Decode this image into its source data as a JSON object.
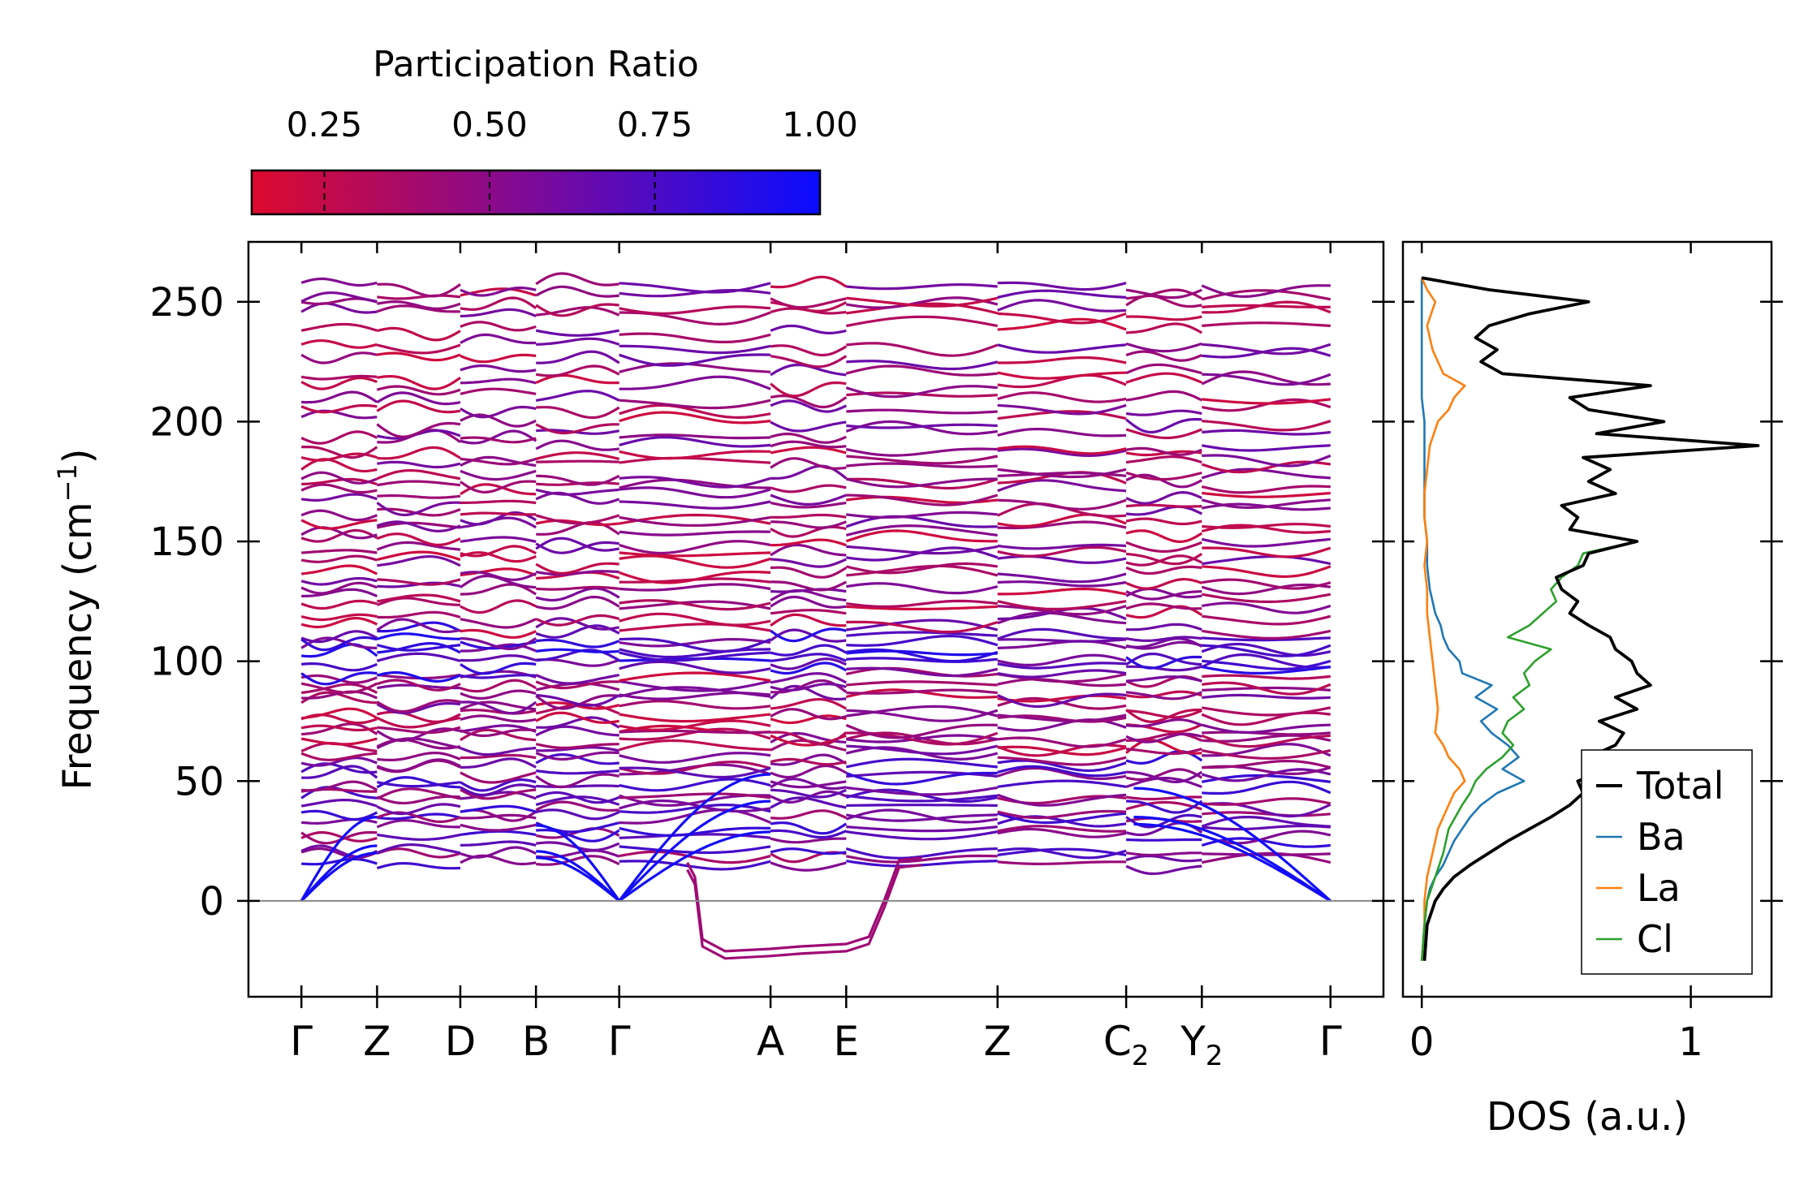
{
  "chart_data": [
    {
      "type": "line",
      "title": "",
      "ylabel": "Frequency (cm⁻¹)",
      "ylabel_main": "Frequency (cm",
      "ylabel_sup": "−1",
      "ylabel_close": ")",
      "ylim": [
        -40,
        275
      ],
      "yticks": [
        0,
        50,
        100,
        150,
        200,
        250
      ],
      "xticks": [
        {
          "label": "Γ",
          "pos": 0.0
        },
        {
          "label": "Z",
          "pos": 0.5
        },
        {
          "label": "D",
          "pos": 1.05
        },
        {
          "label": "B",
          "pos": 1.55
        },
        {
          "label": "Γ",
          "pos": 2.1
        },
        {
          "label": "A",
          "pos": 3.1
        },
        {
          "label": "E",
          "pos": 3.6
        },
        {
          "label": "Z",
          "pos": 4.6
        },
        {
          "label": "C",
          "sub": "2",
          "pos": 5.45
        },
        {
          "label": "Y",
          "sub": "2",
          "pos": 5.95
        },
        {
          "label": "Γ",
          "pos": 6.8
        }
      ],
      "xlim": [
        -0.35,
        7.15
      ],
      "colorbar": {
        "label": "Participation Ratio",
        "range": [
          0.14,
          1.0
        ],
        "ticks": [
          "0.25",
          "0.50",
          "0.75",
          "1.00"
        ],
        "tick_values": [
          0.25,
          0.5,
          0.75,
          1.0
        ],
        "color_low": "#dd0a2e",
        "color_mid": "#7c0a9a",
        "color_high": "#0a0cff"
      },
      "band_levels": [
        15,
        19,
        22,
        27,
        30,
        33,
        36,
        39,
        42,
        45,
        48,
        51,
        54,
        57,
        60,
        63,
        66,
        69,
        72,
        75,
        78,
        81,
        84,
        87,
        90,
        93,
        96,
        99,
        102,
        105,
        108,
        111,
        114,
        118,
        122,
        126,
        130,
        134,
        138,
        142,
        146,
        150,
        154,
        158,
        162,
        166,
        170,
        174,
        178,
        182,
        186,
        190,
        195,
        200,
        205,
        210,
        215,
        220,
        226,
        232,
        238,
        244,
        248,
        252,
        256
      ],
      "acoustic_branches": [
        {
          "gamma0_to_Z": [
            0,
            20
          ],
          "gamma_to_A": [
            0,
            18
          ]
        },
        {
          "gamma0_to_Z": [
            0,
            23
          ],
          "gamma_to_A": [
            0,
            26
          ]
        },
        {
          "gamma0_to_Z": [
            0,
            35
          ],
          "gamma_to_A": [
            0,
            33
          ]
        }
      ],
      "imaginary_mode": {
        "min_freq": -22,
        "segment": "Γ-A-E",
        "values": [
          16,
          10,
          -16,
          -21,
          -20,
          -19,
          -18,
          -15,
          0,
          17,
          18
        ]
      }
    },
    {
      "type": "line",
      "xlabel": "DOS (a.u.)",
      "xlim": [
        -0.07,
        1.3
      ],
      "xticks": [
        0,
        1
      ],
      "ylim": [
        -40,
        275
      ],
      "legend_position": "lower-right",
      "series": [
        {
          "name": "Total",
          "color": "#000000",
          "y": [
            -25,
            -10,
            0,
            5,
            10,
            15,
            20,
            25,
            30,
            35,
            40,
            45,
            50,
            55,
            60,
            65,
            70,
            75,
            80,
            85,
            90,
            95,
            100,
            105,
            110,
            115,
            120,
            125,
            130,
            135,
            140,
            145,
            150,
            155,
            160,
            165,
            170,
            175,
            180,
            185,
            190,
            195,
            200,
            205,
            210,
            215,
            220,
            225,
            230,
            235,
            240,
            245,
            250,
            255,
            260
          ],
          "values": [
            0.01,
            0.02,
            0.05,
            0.08,
            0.12,
            0.18,
            0.25,
            0.32,
            0.4,
            0.48,
            0.55,
            0.6,
            0.58,
            0.7,
            0.62,
            0.72,
            0.75,
            0.66,
            0.8,
            0.72,
            0.85,
            0.8,
            0.78,
            0.72,
            0.7,
            0.62,
            0.55,
            0.58,
            0.52,
            0.5,
            0.6,
            0.62,
            0.8,
            0.55,
            0.58,
            0.52,
            0.72,
            0.62,
            0.7,
            0.6,
            1.25,
            0.65,
            0.9,
            0.62,
            0.55,
            0.85,
            0.3,
            0.22,
            0.28,
            0.2,
            0.25,
            0.4,
            0.62,
            0.25,
            0.0
          ]
        },
        {
          "name": "Ba",
          "color": "#1f77b4",
          "y": [
            -25,
            -10,
            0,
            5,
            10,
            15,
            20,
            25,
            30,
            35,
            40,
            45,
            50,
            55,
            60,
            65,
            70,
            75,
            80,
            85,
            90,
            95,
            100,
            105,
            110,
            115,
            120,
            125,
            130,
            140,
            150,
            160,
            170,
            180,
            190,
            200,
            210,
            220,
            230,
            240,
            250,
            260
          ],
          "values": [
            0.0,
            0.01,
            0.02,
            0.03,
            0.05,
            0.08,
            0.1,
            0.12,
            0.15,
            0.18,
            0.22,
            0.28,
            0.38,
            0.3,
            0.36,
            0.32,
            0.26,
            0.22,
            0.28,
            0.2,
            0.26,
            0.15,
            0.14,
            0.1,
            0.08,
            0.07,
            0.05,
            0.04,
            0.03,
            0.02,
            0.02,
            0.01,
            0.01,
            0.01,
            0.01,
            0.01,
            0.0,
            0.0,
            0.0,
            0.0,
            0.0,
            0.0
          ]
        },
        {
          "name": "La",
          "color": "#ff7f0e",
          "y": [
            -25,
            -10,
            0,
            10,
            20,
            30,
            40,
            45,
            50,
            55,
            60,
            65,
            70,
            80,
            90,
            100,
            110,
            120,
            130,
            140,
            150,
            160,
            170,
            180,
            190,
            200,
            205,
            210,
            215,
            220,
            230,
            240,
            250,
            255,
            260
          ],
          "values": [
            0.0,
            0.01,
            0.01,
            0.02,
            0.04,
            0.06,
            0.1,
            0.12,
            0.16,
            0.14,
            0.1,
            0.08,
            0.05,
            0.06,
            0.05,
            0.04,
            0.03,
            0.02,
            0.02,
            0.01,
            0.02,
            0.01,
            0.01,
            0.02,
            0.03,
            0.06,
            0.1,
            0.12,
            0.16,
            0.08,
            0.04,
            0.02,
            0.05,
            0.02,
            0.0
          ]
        },
        {
          "name": "Cl",
          "color": "#2ca02c",
          "y": [
            -25,
            -10,
            0,
            10,
            20,
            30,
            40,
            45,
            50,
            55,
            60,
            65,
            70,
            75,
            80,
            85,
            90,
            95,
            100,
            105,
            110,
            115,
            120,
            125,
            130,
            135,
            140,
            145,
            150,
            155,
            160,
            165,
            170,
            175,
            180,
            185,
            190,
            195,
            200,
            205,
            210,
            215,
            220,
            225,
            230,
            235,
            240,
            245,
            250,
            255,
            260
          ],
          "values": [
            0.0,
            0.01,
            0.02,
            0.05,
            0.08,
            0.1,
            0.15,
            0.18,
            0.2,
            0.24,
            0.3,
            0.34,
            0.3,
            0.32,
            0.38,
            0.34,
            0.4,
            0.38,
            0.42,
            0.48,
            0.32,
            0.4,
            0.45,
            0.5,
            0.48,
            0.52,
            0.58,
            0.6,
            0.8,
            0.55,
            0.58,
            0.52,
            0.72,
            0.62,
            0.7,
            0.6,
            1.25,
            0.65,
            0.9,
            0.62,
            0.55,
            0.85,
            0.3,
            0.22,
            0.28,
            0.2,
            0.25,
            0.4,
            0.62,
            0.25,
            0.0
          ]
        }
      ]
    }
  ]
}
